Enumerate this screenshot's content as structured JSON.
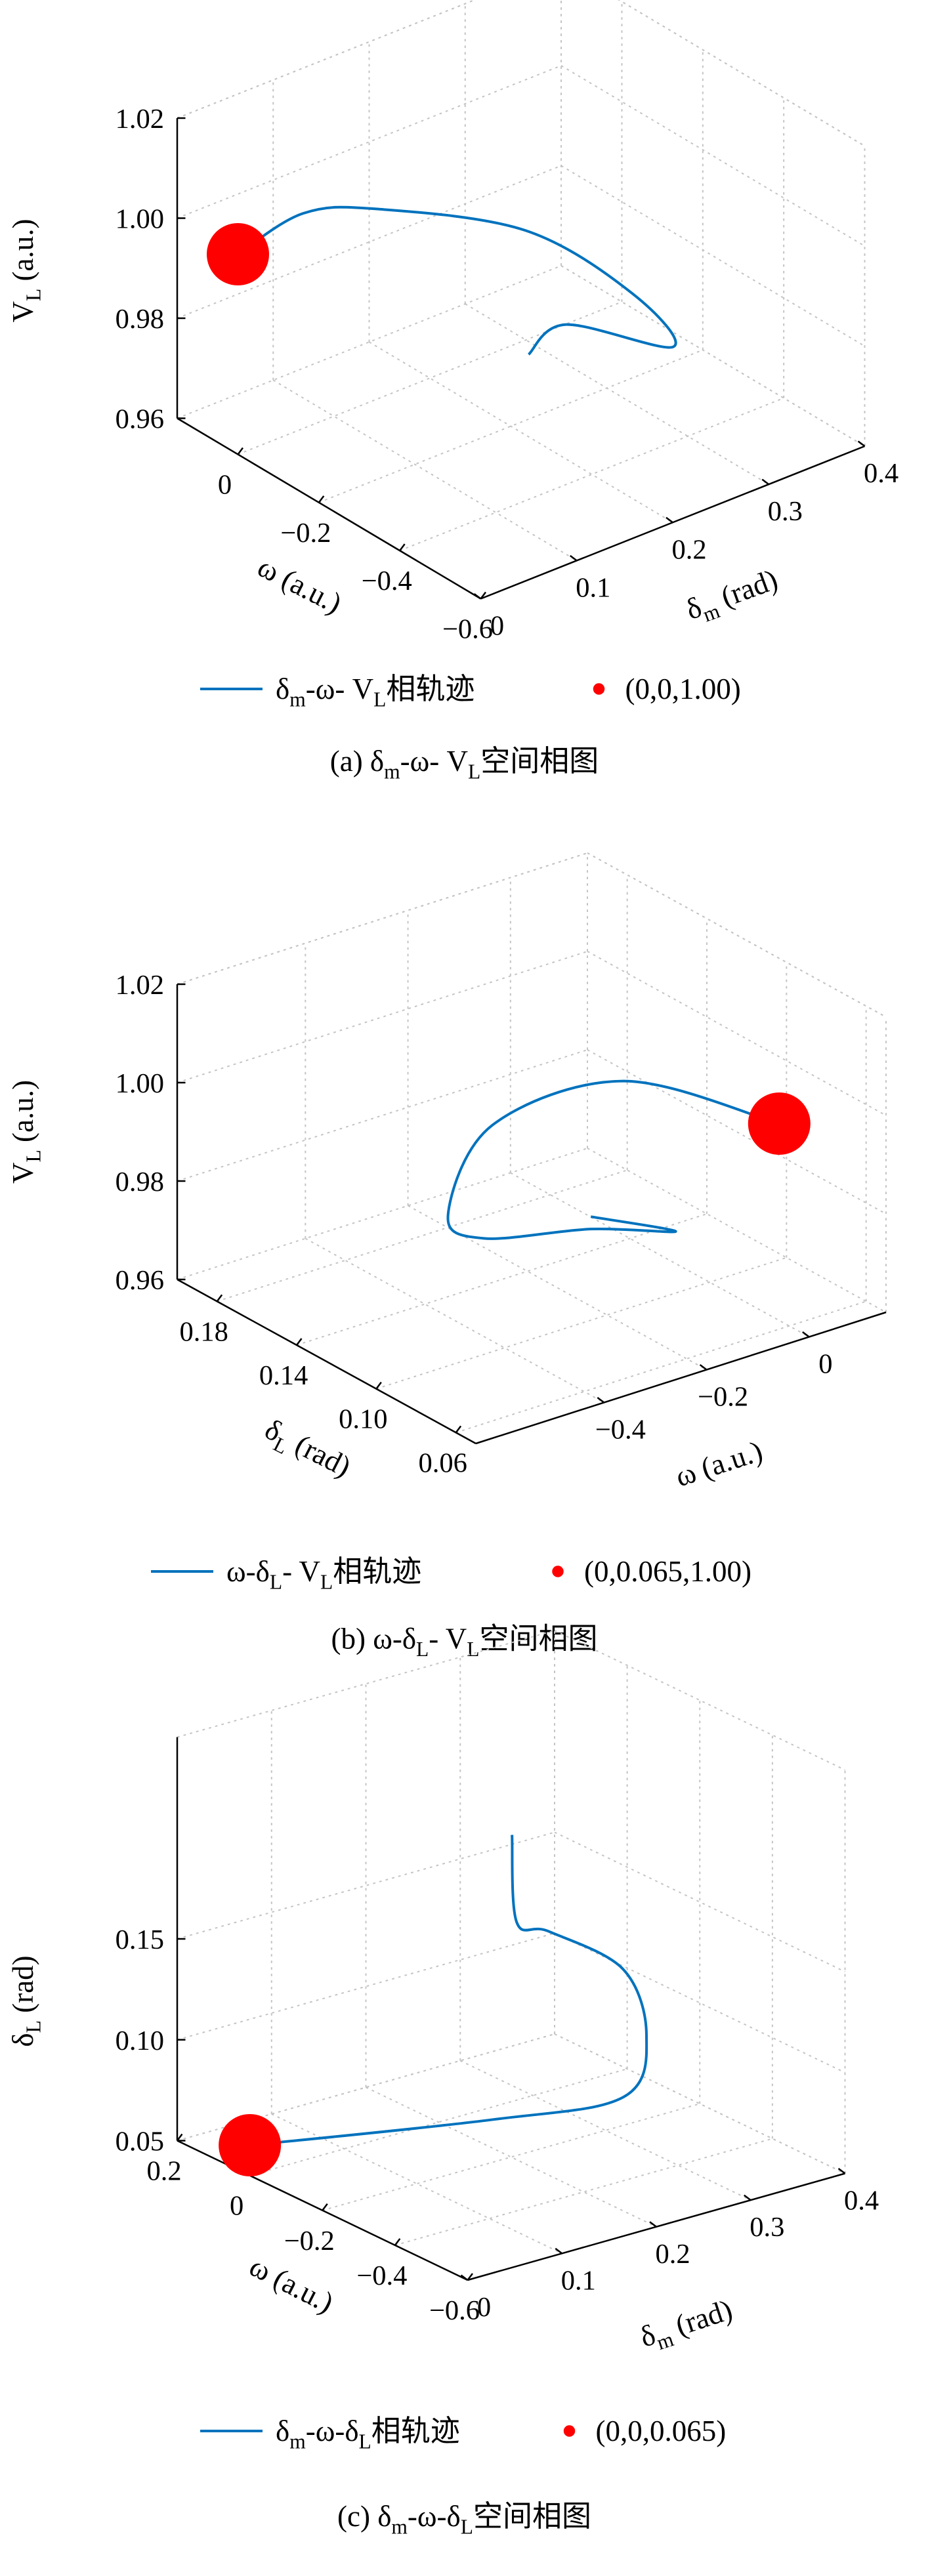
{
  "chart_data": [
    {
      "type": "line3d",
      "xlabel": [
        {
          "text": "δ"
        },
        {
          "sub": "m"
        },
        {
          "text": " (rad)"
        }
      ],
      "ylabel": [
        {
          "text": "ω (a.u.)"
        }
      ],
      "zlabel": [
        {
          "text": "V"
        },
        {
          "sub": "L"
        },
        {
          "text": " (a.u.)"
        }
      ],
      "xlim": [
        0,
        0.4
      ],
      "ylim": [
        0.15,
        -0.6
      ],
      "zlim": [
        0.96,
        1.02
      ],
      "xticks": [
        0,
        0.1,
        0.2,
        0.3,
        0.4
      ],
      "yticks": [
        0,
        {
          "value": -0.2,
          "label": "−0.2"
        },
        {
          "value": -0.4,
          "label": "−0.4"
        },
        {
          "value": -0.6,
          "label": "−0.6"
        }
      ],
      "zticks": [
        0.96,
        0.98,
        {
          "value": 1,
          "label": "1.00"
        },
        1.02
      ],
      "grid": true,
      "series": [
        {
          "name": [
            {
              "text": "δ"
            },
            {
              "sub": "m"
            },
            {
              "text": "-ω- V"
            },
            {
              "sub": "L"
            },
            {
              "text": "相轨迹"
            }
          ],
          "color": "#0072bd",
          "mode": "line",
          "x": [
            0,
            0.047,
            0.103,
            0.215,
            0.284,
            0.306,
            0.152,
            0.092
          ],
          "y": [
            0,
            -0.05,
            -0.1,
            -0.2,
            -0.3,
            -0.35,
            -0.45,
            -0.5
          ],
          "z": [
            1,
            1.007,
            1.006,
            0.998,
            0.985,
            0.975,
            0.996,
            0.997
          ]
        },
        {
          "name": [
            {
              "text": "(0,0,1.00)"
            }
          ],
          "color": "#ff0000",
          "mode": "marker",
          "x": [
            0
          ],
          "y": [
            0
          ],
          "z": [
            1
          ]
        }
      ],
      "caption": [
        {
          "text": "(a) δ"
        },
        {
          "sub": "m"
        },
        {
          "text": "-ω- V"
        },
        {
          "sub": "L"
        },
        {
          "text": "空间相图"
        }
      ]
    },
    {
      "type": "line3d",
      "xlabel": [
        {
          "text": "ω (a.u.)"
        }
      ],
      "ylabel": [
        {
          "text": "δ"
        },
        {
          "sub": "L"
        },
        {
          "text": " (rad)"
        }
      ],
      "zlabel": [
        {
          "text": "V"
        },
        {
          "sub": "L"
        },
        {
          "text": " (a.u.)"
        }
      ],
      "xlim": [
        -0.65,
        0.15
      ],
      "ylim": [
        0.2,
        0.05
      ],
      "zlim": [
        0.96,
        1.02
      ],
      "xticks": [
        {
          "value": -0.4,
          "label": "−0.4"
        },
        {
          "value": -0.2,
          "label": "−0.2"
        },
        0
      ],
      "yticks": [
        0.18,
        0.14,
        {
          "value": 0.1,
          "label": "0.10"
        },
        0.06
      ],
      "zticks": [
        0.96,
        0.98,
        {
          "value": 1,
          "label": "1.00"
        },
        1.02
      ],
      "grid": true,
      "series": [
        {
          "name": [
            {
              "text": "ω-δ"
            },
            {
              "sub": "L"
            },
            {
              "text": "- V"
            },
            {
              "sub": "L"
            },
            {
              "text": "相轨迹"
            }
          ],
          "color": "#0072bd",
          "mode": "line",
          "x": [
            0,
            -0.207,
            -0.346,
            -0.316,
            -0.246,
            -0.116,
            -0.027,
            -0.154
          ],
          "y": [
            0.065,
            0.09,
            0.12,
            0.15,
            0.15,
            0.13,
            0.11,
            0.12
          ],
          "z": [
            1,
            1.01,
            0.999,
            0.973,
            0.966,
            0.968,
            0.969,
            0.974
          ]
        },
        {
          "name": [
            {
              "text": "(0,0.065,1.00)"
            }
          ],
          "color": "#ff0000",
          "mode": "marker",
          "x": [
            0
          ],
          "y": [
            0.065
          ],
          "z": [
            1
          ]
        }
      ],
      "caption": [
        {
          "text": "(b) ω-δ"
        },
        {
          "sub": "L"
        },
        {
          "text": "- V"
        },
        {
          "sub": "L"
        },
        {
          "text": "空间相图"
        }
      ]
    },
    {
      "type": "line3d",
      "xlabel": [
        {
          "text": "δ"
        },
        {
          "sub": "m"
        },
        {
          "text": " (rad)"
        }
      ],
      "ylabel": [
        {
          "text": "ω (a.u.)"
        }
      ],
      "zlabel": [
        {
          "text": "δ"
        },
        {
          "sub": "L"
        },
        {
          "text": " (rad)"
        }
      ],
      "xlim": [
        0,
        0.4
      ],
      "ylim": [
        0.2,
        -0.6
      ],
      "zlim": [
        0.05,
        0.25
      ],
      "xticks": [
        0,
        0.1,
        0.2,
        0.3,
        0.4
      ],
      "yticks": [
        0.2,
        0,
        {
          "value": -0.2,
          "label": "−0.2"
        },
        {
          "value": -0.4,
          "label": "−0.4"
        },
        {
          "value": -0.6,
          "label": "−0.6"
        }
      ],
      "zticks": [
        0.05,
        {
          "value": 0.1,
          "label": "0.10"
        },
        0.15
      ],
      "grid": true,
      "series": [
        {
          "name": [
            {
              "text": "δ"
            },
            {
              "sub": "m"
            },
            {
              "text": "-ω-δ"
            },
            {
              "sub": "L"
            },
            {
              "text": "相轨迹"
            }
          ],
          "color": "#0072bd",
          "mode": "line",
          "x": [
            0,
            0.218,
            0.319,
            0.305,
            0.261,
            0.163,
            0.129,
            0.124
          ],
          "y": [
            0,
            -0.1,
            -0.2,
            -0.3,
            -0.35,
            -0.4,
            -0.4,
            -0.4
          ],
          "z": [
            0.065,
            0.0575,
            0.064,
            0.105,
            0.148,
            0.184,
            0.193,
            0.237
          ]
        },
        {
          "name": [
            {
              "text": "(0,0,0.065)"
            }
          ],
          "color": "#ff0000",
          "mode": "marker",
          "x": [
            0
          ],
          "y": [
            0
          ],
          "z": [
            0.065
          ]
        }
      ],
      "caption": [
        {
          "text": "(c) δ"
        },
        {
          "sub": "m"
        },
        {
          "text": "-ω-δ"
        },
        {
          "sub": "L"
        },
        {
          "text": "空间相图"
        }
      ]
    }
  ]
}
